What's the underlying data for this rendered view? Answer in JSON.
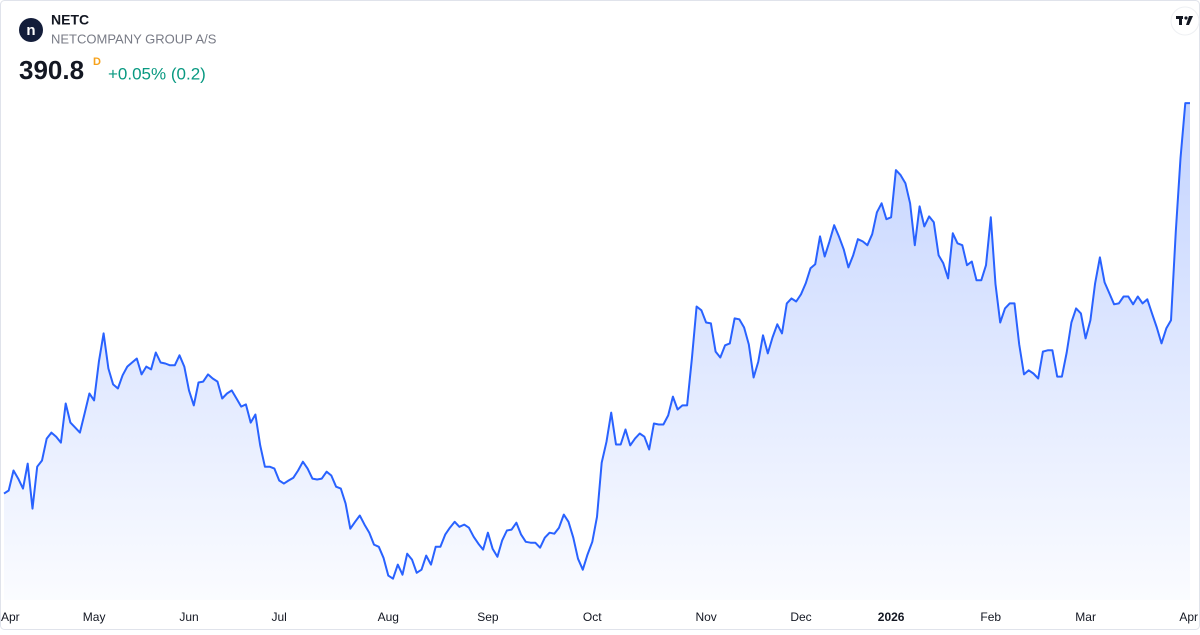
{
  "header": {
    "logo_letter": "n",
    "symbol": "NETC",
    "name": "NETCOMPANY GROUP A/S",
    "price": 390.8,
    "interval": "D",
    "change": "+0.05% (0.2)"
  },
  "chart_data": {
    "type": "area",
    "color": "#2962ff",
    "values": [
      266.0,
      267.0,
      273.4,
      270.8,
      267.6,
      275.6,
      261.2,
      274.6,
      276.6,
      283.6,
      285.5,
      284.2,
      282.3,
      294.8,
      288.7,
      287.1,
      285.5,
      291.6,
      298.0,
      295.8,
      308.2,
      317.2,
      306.0,
      300.9,
      299.6,
      303.8,
      306.6,
      307.9,
      309.2,
      304.1,
      306.6,
      305.7,
      311.1,
      307.9,
      307.6,
      307.0,
      307.0,
      310.2,
      306.6,
      299.0,
      294.2,
      301.5,
      301.8,
      304.1,
      302.8,
      301.8,
      296.4,
      298.0,
      299.0,
      296.4,
      293.8,
      294.5,
      288.7,
      291.3,
      281.4,
      274.6,
      274.6,
      274.0,
      270.2,
      269.2,
      270.2,
      271.1,
      273.4,
      276.2,
      274.0,
      270.8,
      270.5,
      270.8,
      273.0,
      271.8,
      268.2,
      267.6,
      262.8,
      254.8,
      257.0,
      259.0,
      256.1,
      253.5,
      249.7,
      249.0,
      245.5,
      239.8,
      238.8,
      243.3,
      240.1,
      246.8,
      244.9,
      240.7,
      241.7,
      246.2,
      243.3,
      249.0,
      249.0,
      252.9,
      255.1,
      257.0,
      255.4,
      256.1,
      255.1,
      252.2,
      250.0,
      248.1,
      253.5,
      248.4,
      245.8,
      251.0,
      254.2,
      254.5,
      256.7,
      252.9,
      250.6,
      250.3,
      250.3,
      248.7,
      251.9,
      253.5,
      253.2,
      255.1,
      259.3,
      257.0,
      251.9,
      245.2,
      241.7,
      246.5,
      250.6,
      258.6,
      275.9,
      282.6,
      291.9,
      281.7,
      281.7,
      286.5,
      281.4,
      283.6,
      285.2,
      284.2,
      280.1,
      288.4,
      288.1,
      288.1,
      291.0,
      297.0,
      292.9,
      294.2,
      294.2,
      309.2,
      325.8,
      324.6,
      320.7,
      320.4,
      311.4,
      309.5,
      313.4,
      314.0,
      322.0,
      321.7,
      319.1,
      313.7,
      303.1,
      308.2,
      316.6,
      310.8,
      315.9,
      320.1,
      317.2,
      326.8,
      328.4,
      327.4,
      329.7,
      333.2,
      338.0,
      339.3,
      348.2,
      341.8,
      346.6,
      351.8,
      348.2,
      344.1,
      338.3,
      342.2,
      347.3,
      346.6,
      345.4,
      348.9,
      355.9,
      358.8,
      353.7,
      354.3,
      369.4,
      367.8,
      365.2,
      358.8,
      345.4,
      357.8,
      351.4,
      354.6,
      352.7,
      342.2,
      339.6,
      334.8,
      349.2,
      346.0,
      345.4,
      339.0,
      340.2,
      334.2,
      334.2,
      339.0,
      354.3,
      332.9,
      320.7,
      325.2,
      326.8,
      326.8,
      313.7,
      304.1,
      305.4,
      304.4,
      302.8,
      311.4,
      311.8,
      311.8,
      303.4,
      303.4,
      311.1,
      320.7,
      325.2,
      323.6,
      315.6,
      321.4,
      333.2,
      341.5,
      333.5,
      330.0,
      326.5,
      326.8,
      329.0,
      329.0,
      326.5,
      329.0,
      326.8,
      328.1,
      323.6,
      319.1,
      314.0,
      318.8,
      321.4,
      349.8,
      373.2,
      390.8,
      390.8
    ],
    "xlim": [
      0,
      250
    ],
    "xticks": [
      {
        "value": 1,
        "label": "Apr"
      },
      {
        "value": 19,
        "label": "May"
      },
      {
        "value": 39,
        "label": "Jun"
      },
      {
        "value": 58,
        "label": "Jul"
      },
      {
        "value": 81,
        "label": "Aug"
      },
      {
        "value": 102,
        "label": "Sep"
      },
      {
        "value": 124,
        "label": "Oct"
      },
      {
        "value": 148,
        "label": "Nov"
      },
      {
        "value": 168,
        "label": "Dec"
      },
      {
        "value": 187,
        "label": "2026"
      },
      {
        "value": 208,
        "label": "Feb"
      },
      {
        "value": 228,
        "label": "Mar"
      },
      {
        "value": 250,
        "label": "Apr"
      }
    ],
    "ylim": [
      232,
      395
    ]
  }
}
